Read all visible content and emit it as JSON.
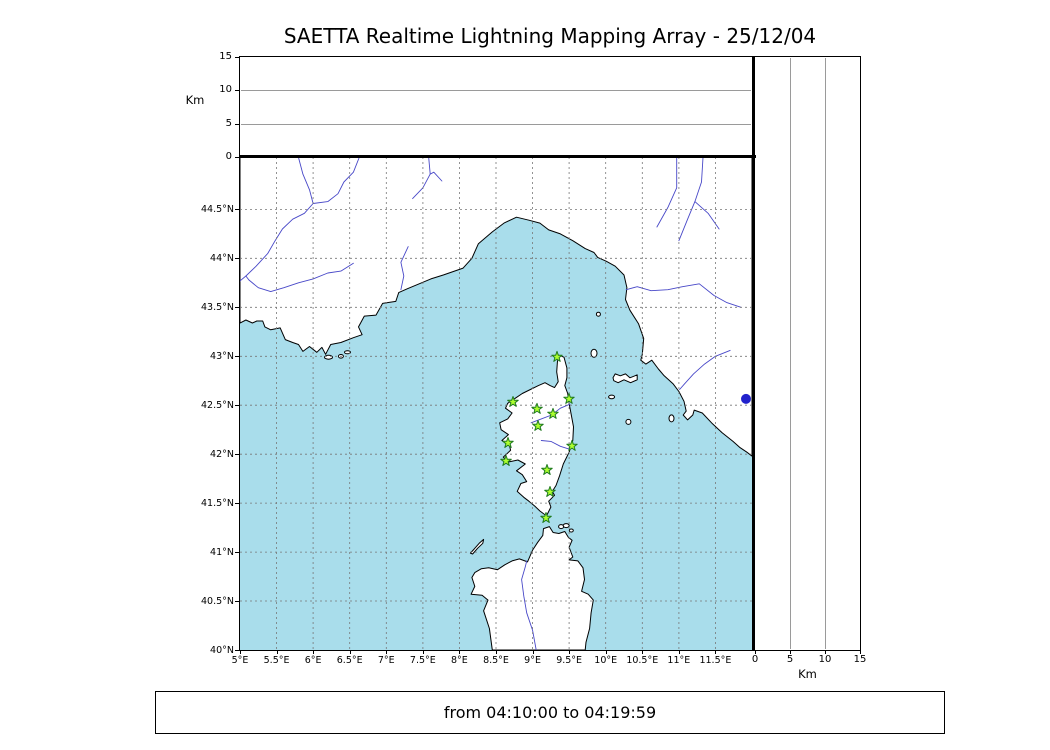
{
  "title": "SAETTA Realtime Lightning Mapping Array - 25/12/04",
  "footer": {
    "time_range": "from 04:10:00 to 04:19:59"
  },
  "panels": {
    "top": {
      "axis_label": "Km",
      "tick_labels": [
        "0",
        "5",
        "10",
        "15"
      ],
      "tick_values": [
        0,
        5,
        10,
        15
      ],
      "range_km": [
        0,
        15
      ]
    },
    "right": {
      "axis_label": "Km",
      "tick_labels": [
        "0",
        "5",
        "10",
        "15"
      ],
      "tick_values": [
        0,
        5,
        10,
        15
      ],
      "range_km": [
        0,
        15
      ]
    }
  },
  "map": {
    "lon_tick_labels": [
      "5°E",
      "5.5°E",
      "6°E",
      "6.5°E",
      "7°E",
      "7.5°E",
      "8°E",
      "8.5°E",
      "9°E",
      "9.5°E",
      "10°E",
      "10.5°E",
      "11°E",
      "11.5°E"
    ],
    "lon_tick_values": [
      5,
      5.5,
      6,
      6.5,
      7,
      7.5,
      8,
      8.5,
      9,
      9.5,
      10,
      10.5,
      11,
      11.5
    ],
    "lat_tick_labels": [
      "40°N",
      "40.5°N",
      "41°N",
      "41.5°N",
      "42°N",
      "42.5°N",
      "43°N",
      "43.5°N",
      "44°N",
      "44.5°N"
    ],
    "lat_tick_values": [
      40,
      40.5,
      41,
      41.5,
      42,
      42.5,
      43,
      43.5,
      44,
      44.5
    ],
    "lon_range": [
      5,
      12
    ],
    "lat_range": [
      40,
      45.035
    ],
    "colors": {
      "sea": "#a9ddeb",
      "land": "#ffffff",
      "coast": "#000000",
      "river": "#4848c8",
      "lake": "#2222cc",
      "grid": "#777777",
      "station_fill": "#adff2f",
      "station_edge": "#1f7a1f"
    },
    "stations": [
      {
        "lon": 9.334,
        "lat": 42.993
      },
      {
        "lon": 8.732,
        "lat": 42.533
      },
      {
        "lon": 9.061,
        "lat": 42.462
      },
      {
        "lon": 9.498,
        "lat": 42.564
      },
      {
        "lon": 9.279,
        "lat": 42.411
      },
      {
        "lon": 9.074,
        "lat": 42.288
      },
      {
        "lon": 8.664,
        "lat": 42.114
      },
      {
        "lon": 9.539,
        "lat": 42.084
      },
      {
        "lon": 8.637,
        "lat": 41.93
      },
      {
        "lon": 9.197,
        "lat": 41.838
      },
      {
        "lon": 9.238,
        "lat": 41.614
      },
      {
        "lon": 9.184,
        "lat": 41.348
      }
    ],
    "lake_marker": {
      "lon": 11.918,
      "lat": 42.564
    }
  }
}
